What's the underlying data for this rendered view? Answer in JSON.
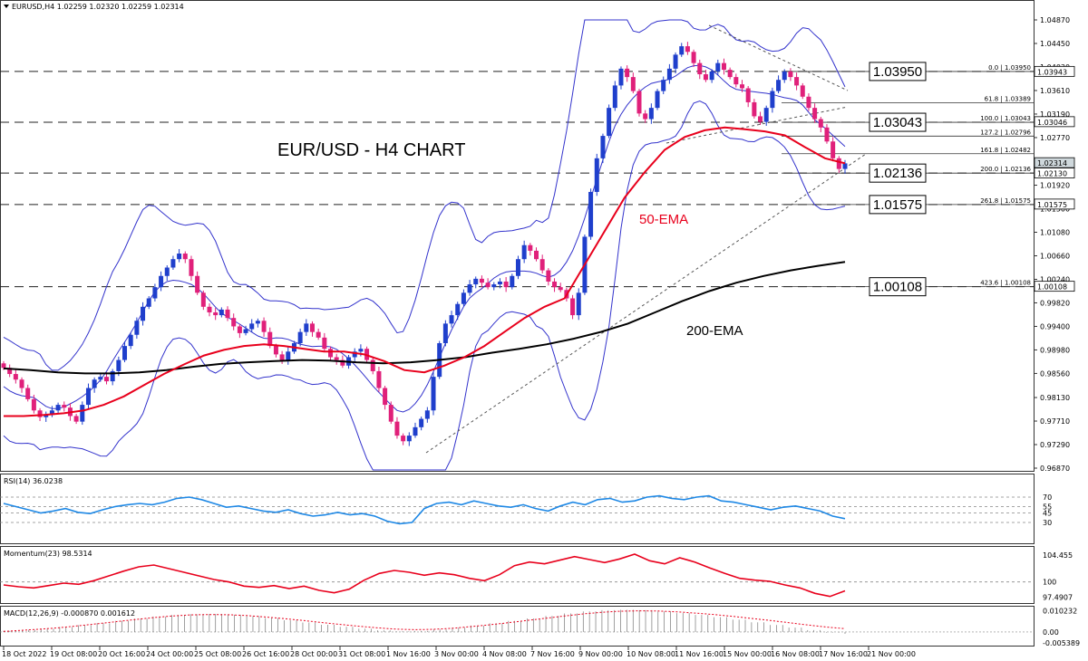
{
  "chart_data": {
    "type": "candlestick",
    "symbol_header": "EURUSD,H4 1.02259 1.02320 1.02259 1.02314",
    "title": "EUR/USD - H4 CHART",
    "price_axis_ticks": [
      "1.04870",
      "1.04450",
      "1.04030",
      "1.03610",
      "1.03190",
      "1.02770",
      "1.01920",
      "1.01500",
      "1.01080",
      "1.00660",
      "1.00240",
      "0.99820",
      "0.99400",
      "0.98980",
      "0.98560",
      "0.98130",
      "0.97710",
      "0.97290",
      "0.96870"
    ],
    "price_range": [
      0.9687,
      1.0487
    ],
    "x_axis_labels": [
      "18 Oct 2022",
      "19 Oct 08:00",
      "20 Oct 16:00",
      "24 Oct 00:00",
      "25 Oct 08:00",
      "26 Oct 16:00",
      "28 Oct 00:00",
      "31 Oct 08:00",
      "1 Nov 16:00",
      "3 Nov 00:00",
      "4 Nov 08:00",
      "7 Nov 16:00",
      "9 Nov 00:00",
      "10 Nov 08:00",
      "11 Nov 16:00",
      "15 Nov 00:00",
      "16 Nov 08:00",
      "17 Nov 16:00",
      "21 Nov 00:00"
    ],
    "price_boxes": [
      "1.03943",
      "1.03046",
      "1.02314",
      "1.02130",
      "1.01575",
      "1.00108"
    ],
    "levels": [
      {
        "label": "1.03950",
        "price": 1.0395
      },
      {
        "label": "1.03043",
        "price": 1.03043
      },
      {
        "label": "1.02136",
        "price": 1.02136
      },
      {
        "label": "1.01575",
        "price": 1.01575
      },
      {
        "label": "1.00108",
        "price": 1.00108
      }
    ],
    "fibonacci": [
      {
        "label": "0.0 | 1.03950",
        "price": 1.0395
      },
      {
        "label": "61.8 | 1.03389",
        "price": 1.03389
      },
      {
        "label": "100.0 | 1.03043",
        "price": 1.03043
      },
      {
        "label": "127.2 | 1.02796",
        "price": 1.02796
      },
      {
        "label": "161.8 | 1.02482",
        "price": 1.02482
      },
      {
        "label": "200.0 | 1.02136",
        "price": 1.02136
      },
      {
        "label": "261.8 | 1.01575",
        "price": 1.01575
      },
      {
        "label": "423.6 | 1.00108",
        "price": 1.00108
      }
    ],
    "ema_labels": {
      "ema50": "50-EMA",
      "ema200": "200-EMA"
    },
    "close_path": [
      0.9866,
      0.9855,
      0.9845,
      0.983,
      0.981,
      0.979,
      0.9778,
      0.9782,
      0.979,
      0.98,
      0.9795,
      0.978,
      0.977,
      0.98,
      0.983,
      0.9845,
      0.985,
      0.9842,
      0.986,
      0.988,
      0.9905,
      0.9925,
      0.995,
      0.9975,
      0.999,
      1.001,
      1.003,
      1.0045,
      1.006,
      1.007,
      1.006,
      1.003,
      1.0,
      0.9975,
      0.9965,
      0.996,
      0.997,
      0.9955,
      0.994,
      0.9928,
      0.9935,
      0.9945,
      0.995,
      0.993,
      0.9905,
      0.989,
      0.988,
      0.9895,
      0.991,
      0.993,
      0.9945,
      0.993,
      0.992,
      0.99,
      0.9885,
      0.988,
      0.987,
      0.9885,
      0.9895,
      0.99,
      0.988,
      0.986,
      0.983,
      0.98,
      0.977,
      0.9745,
      0.9735,
      0.9745,
      0.976,
      0.9775,
      0.979,
      0.985,
      0.991,
      0.9945,
      0.996,
      0.998,
      1.0,
      1.0015,
      1.0025,
      1.0018,
      1.001,
      1.0015,
      1.002,
      1.001,
      1.003,
      1.006,
      1.0085,
      1.0075,
      1.006,
      1.004,
      1.002,
      1.001,
      1.0005,
      0.999,
      0.996,
      1.0,
      1.01,
      1.018,
      1.024,
      1.028,
      1.033,
      1.037,
      1.04,
      1.0385,
      1.036,
      1.032,
      1.031,
      1.033,
      1.036,
      1.038,
      1.04,
      1.0425,
      1.044,
      1.043,
      1.041,
      1.039,
      1.038,
      1.0395,
      1.041,
      1.0398,
      1.0385,
      1.0372,
      1.0365,
      1.034,
      1.0315,
      1.0305,
      1.033,
      1.036,
      1.038,
      1.0395,
      1.0385,
      1.037,
      1.035,
      1.033,
      1.031,
      1.0295,
      1.027,
      1.024,
      1.0221,
      1.0231
    ],
    "ema50": [
      0.978,
      0.978,
      0.9782,
      0.9785,
      0.979,
      0.98,
      0.9815,
      0.9835,
      0.9855,
      0.9872,
      0.9888,
      0.9898,
      0.9905,
      0.9908,
      0.9905,
      0.99,
      0.9895,
      0.9895,
      0.989,
      0.9878,
      0.9862,
      0.9858,
      0.987,
      0.9885,
      0.9905,
      0.993,
      0.9955,
      0.9975,
      0.999,
      1.005,
      1.011,
      1.017,
      1.0215,
      1.0255,
      1.0278,
      1.029,
      1.0295,
      1.0292,
      1.0288,
      1.0281,
      1.026,
      1.024,
      1.0231
    ],
    "ema200": [
      0.9865,
      0.9862,
      0.9858,
      0.9856,
      0.9856,
      0.9858,
      0.9862,
      0.9868,
      0.9873,
      0.9876,
      0.9878,
      0.988,
      0.9879,
      0.9876,
      0.9874,
      0.9876,
      0.988,
      0.9885,
      0.9893,
      0.99,
      0.9908,
      0.9918,
      0.993,
      0.9945,
      0.9965,
      0.9985,
      1.0003,
      1.0018,
      1.003,
      1.004,
      1.0048,
      1.0055
    ],
    "rsi": {
      "label": "RSI(14) 36.0238",
      "ticks": [
        "70",
        "55",
        "45",
        "30"
      ],
      "range": [
        0,
        100
      ],
      "values": [
        60,
        55,
        50,
        45,
        48,
        52,
        46,
        44,
        50,
        55,
        58,
        60,
        58,
        62,
        68,
        70,
        66,
        60,
        54,
        56,
        52,
        48,
        46,
        50,
        44,
        40,
        42,
        46,
        42,
        44,
        40,
        32,
        28,
        30,
        52,
        60,
        62,
        58,
        64,
        60,
        56,
        54,
        58,
        52,
        48,
        56,
        62,
        58,
        66,
        68,
        62,
        64,
        70,
        72,
        68,
        66,
        70,
        72,
        64,
        62,
        58,
        54,
        50,
        54,
        56,
        52,
        48,
        40,
        36
      ]
    },
    "momentum": {
      "label": "Momentum(23) 98.5314",
      "ticks": [
        "104.455",
        "100",
        "97.4907"
      ],
      "range": [
        96.8,
        105.2
      ],
      "values": [
        99.5,
        99.2,
        99.0,
        99.4,
        99.8,
        99.6,
        100.2,
        101.0,
        101.8,
        102.5,
        102.8,
        102.2,
        101.6,
        101.0,
        100.4,
        100.0,
        99.3,
        99.1,
        99.4,
        98.9,
        99.3,
        98.6,
        98.2,
        98.8,
        100.3,
        101.4,
        101.9,
        101.6,
        101.1,
        101.5,
        101.2,
        100.6,
        100.2,
        101.2,
        102.7,
        103.3,
        103.0,
        103.6,
        104.2,
        103.7,
        103.2,
        103.8,
        104.6,
        103.5,
        103.0,
        104.0,
        103.3,
        102.3,
        101.4,
        100.6,
        100.3,
        100.1,
        99.5,
        99.0,
        98.1,
        97.6,
        98.53
      ]
    },
    "macd": {
      "label": "MACD(12,26,9) -0.000870 0.001612",
      "ticks": [
        "0.010232",
        "0.00",
        "-0.005389"
      ],
      "range": [
        -0.0062,
        0.011
      ],
      "hist": [
        0.0005,
        0.001,
        0.0016,
        0.0024,
        0.0033,
        0.0043,
        0.0054,
        0.0065,
        0.0075,
        0.0083,
        0.0087,
        0.0088,
        0.0084,
        0.0077,
        0.0068,
        0.0057,
        0.0046,
        0.0035,
        0.0025,
        0.0016,
        0.0008,
        0.0003,
        0.0005,
        0.0012,
        0.0021,
        0.0031,
        0.0042,
        0.0054,
        0.0066,
        0.0078,
        0.009,
        0.01,
        0.0106,
        0.0108,
        0.0106,
        0.01,
        0.0092,
        0.0083,
        0.0072,
        0.006,
        0.0047,
        0.0034,
        0.0021,
        0.0009,
        -0.0003,
        -0.0009
      ],
      "signal": [
        0.0003,
        0.0008,
        0.0014,
        0.0021,
        0.003,
        0.004,
        0.005,
        0.006,
        0.007,
        0.0078,
        0.0083,
        0.0085,
        0.0084,
        0.008,
        0.0073,
        0.0065,
        0.0056,
        0.0046,
        0.0037,
        0.0028,
        0.002,
        0.0014,
        0.0011,
        0.0013,
        0.0018,
        0.0026,
        0.0035,
        0.0045,
        0.0056,
        0.0067,
        0.0078,
        0.0088,
        0.0096,
        0.0101,
        0.0103,
        0.0102,
        0.0098,
        0.0092,
        0.0085,
        0.0076,
        0.0066,
        0.0056,
        0.0045,
        0.0034,
        0.0024,
        0.0016
      ]
    }
  }
}
